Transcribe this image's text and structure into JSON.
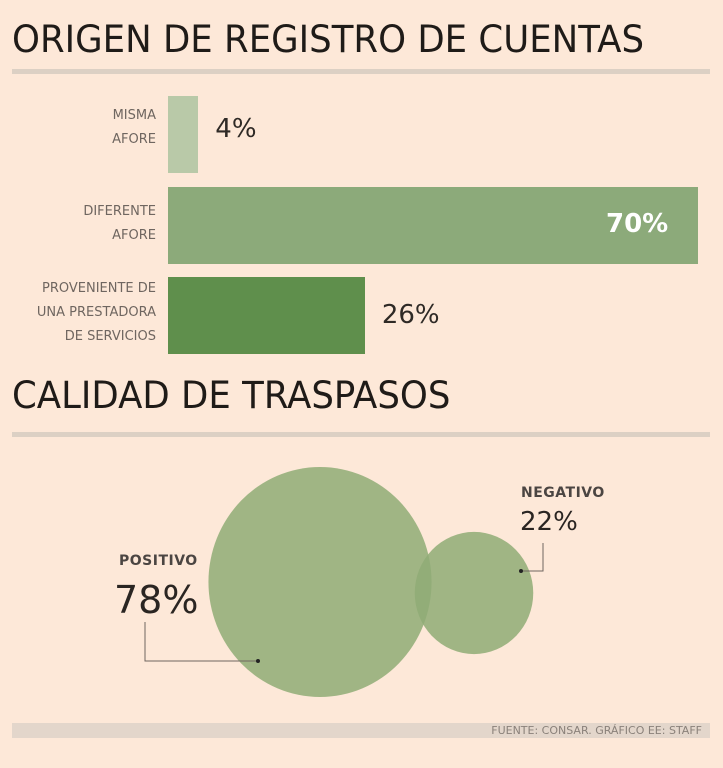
{
  "chart_data": [
    {
      "type": "bar",
      "orientation": "horizontal",
      "title": "ORIGEN DE REGISTRO DE CUENTAS",
      "categories": [
        "MISMA\nAFORE",
        "DIFERENTE\nAFORE",
        "PROVENIENTE DE\nUNA PRESTADORA\nDE SERVICIOS"
      ],
      "values": [
        4,
        70,
        26
      ],
      "value_labels": [
        "4%",
        "70%",
        "26%"
      ],
      "colors": [
        "#b9c9a8",
        "#8caa7a",
        "#5f8f4c"
      ],
      "grid": false
    },
    {
      "type": "bubble",
      "title": "CALIDAD DE TRASPASOS",
      "categories": [
        "POSITIVO",
        "NEGATIVO"
      ],
      "values": [
        78,
        22
      ],
      "value_labels": [
        "78%",
        "22%"
      ],
      "color": "#8fab76"
    }
  ],
  "footer": "FUENTE: CONSAR. GRÁFICO EE: STAFF",
  "colors": {
    "background": "#fde8d8",
    "rule": "#dcd0c4"
  }
}
